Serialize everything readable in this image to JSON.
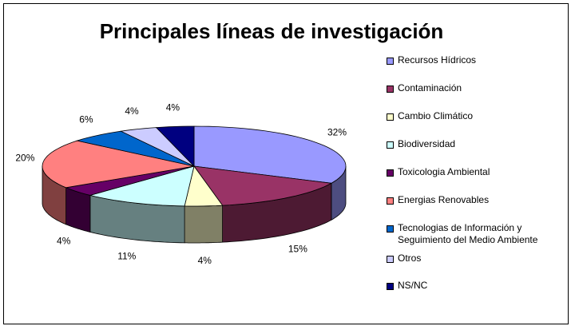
{
  "chart_data": {
    "type": "pie",
    "title": "Principales líneas de investigación",
    "legend_position": "right",
    "slices": [
      {
        "label": "Recursos Hídricos",
        "value": 32,
        "display": "32%",
        "color": "#9999ff",
        "side": "#4d4d80"
      },
      {
        "label": "Contaminación",
        "value": 15,
        "display": "15%",
        "color": "#993366",
        "side": "#4d1a33"
      },
      {
        "label": "Cambio Climático",
        "value": 4,
        "display": "4%",
        "color": "#ffffcc",
        "side": "#808066"
      },
      {
        "label": "Biodiversidad",
        "value": 11,
        "display": "11%",
        "color": "#ccffff",
        "side": "#668080"
      },
      {
        "label": "Toxicologia Ambiental",
        "value": 4,
        "display": "4%",
        "color": "#660066",
        "side": "#330033"
      },
      {
        "label": "Energias Renovables",
        "value": 20,
        "display": "20%",
        "color": "#ff8080",
        "side": "#804040"
      },
      {
        "label": "Tecnologias de Información y Seguimiento del Medio Ambiente",
        "value": 6,
        "display": "6%",
        "color": "#0066cc",
        "side": "#003366"
      },
      {
        "label": "Otros",
        "value": 4,
        "display": "4%",
        "color": "#ccccff",
        "side": "#666680"
      },
      {
        "label": "NS/NC",
        "value": 4,
        "display": "4%",
        "color": "#000080",
        "side": "#000040"
      }
    ]
  }
}
